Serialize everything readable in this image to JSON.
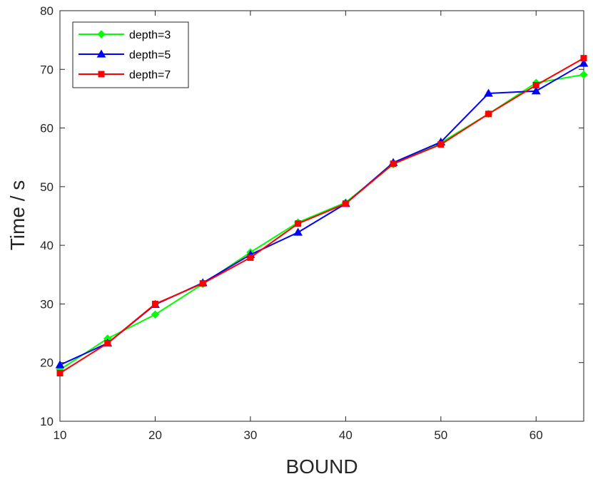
{
  "chart_data": {
    "type": "line",
    "xlabel": "BOUND",
    "ylabel": "Time / s",
    "xlim": [
      10,
      65
    ],
    "ylim": [
      10,
      80
    ],
    "xticks": [
      "10",
      "20",
      "30",
      "40",
      "50",
      "60"
    ],
    "yticks": [
      "10",
      "20",
      "30",
      "40",
      "50",
      "60",
      "70",
      "80"
    ],
    "grid": false,
    "legend_position": "top-left",
    "x": [
      10,
      15,
      20,
      25,
      30,
      35,
      40,
      45,
      50,
      55,
      60,
      65
    ],
    "series": [
      {
        "name": "depth=3",
        "color": "#00ff00",
        "marker": "diamond",
        "values": [
          18.8,
          24.1,
          28.2,
          33.4,
          38.8,
          43.9,
          47.3,
          53.8,
          57.5,
          62.4,
          67.7,
          69.1
        ]
      },
      {
        "name": "depth=5",
        "color": "#0000ff",
        "marker": "triangle",
        "values": [
          19.6,
          23.3,
          29.9,
          33.6,
          38.4,
          42.2,
          47.1,
          54.1,
          57.6,
          65.9,
          66.3,
          71.0
        ]
      },
      {
        "name": "depth=7",
        "color": "#ff0000",
        "marker": "square",
        "values": [
          18.2,
          23.3,
          30.0,
          33.5,
          37.9,
          43.7,
          47.1,
          53.9,
          57.2,
          62.4,
          67.3,
          71.9
        ]
      }
    ]
  }
}
